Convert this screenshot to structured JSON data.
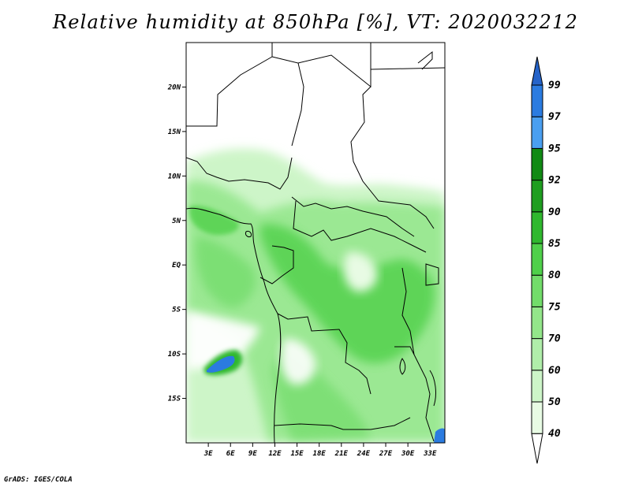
{
  "title": "Relative humidity at 850hPa [%], VT: 2020032212",
  "credit": "GrADS: IGES/COLA",
  "map": {
    "lon_range": [
      0,
      35
    ],
    "lat_range": [
      -20,
      25
    ],
    "lat_ticks": [
      {
        "value": 20,
        "label": "20N"
      },
      {
        "value": 15,
        "label": "15N"
      },
      {
        "value": 10,
        "label": "10N"
      },
      {
        "value": 5,
        "label": "5N"
      },
      {
        "value": 0,
        "label": "EQ"
      },
      {
        "value": -5,
        "label": "5S"
      },
      {
        "value": -10,
        "label": "10S"
      },
      {
        "value": -15,
        "label": "15S"
      }
    ],
    "lon_ticks": [
      {
        "value": 3,
        "label": "3E"
      },
      {
        "value": 6,
        "label": "6E"
      },
      {
        "value": 9,
        "label": "9E"
      },
      {
        "value": 12,
        "label": "12E"
      },
      {
        "value": 15,
        "label": "15E"
      },
      {
        "value": 18,
        "label": "18E"
      },
      {
        "value": 21,
        "label": "21E"
      },
      {
        "value": 24,
        "label": "24E"
      },
      {
        "value": 27,
        "label": "27E"
      },
      {
        "value": 30,
        "label": "30E"
      },
      {
        "value": 33,
        "label": "33E"
      }
    ]
  },
  "colorbar": {
    "levels": [
      {
        "label": "40",
        "color": "#ffffff"
      },
      {
        "label": "50",
        "color": "#e8fbe4"
      },
      {
        "label": "60",
        "color": "#cdf5c8"
      },
      {
        "label": "70",
        "color": "#b0eeaa"
      },
      {
        "label": "75",
        "color": "#93e68a"
      },
      {
        "label": "80",
        "color": "#72dc6a"
      },
      {
        "label": "85",
        "color": "#4fd04a"
      },
      {
        "label": "90",
        "color": "#2fb82e"
      },
      {
        "label": "92",
        "color": "#1f9e20"
      },
      {
        "label": "95",
        "color": "#118a14"
      },
      {
        "label": "97",
        "color": "#4a9ff0"
      },
      {
        "label": "99",
        "color": "#2b7be0"
      }
    ],
    "over_color": "#2563c9"
  }
}
